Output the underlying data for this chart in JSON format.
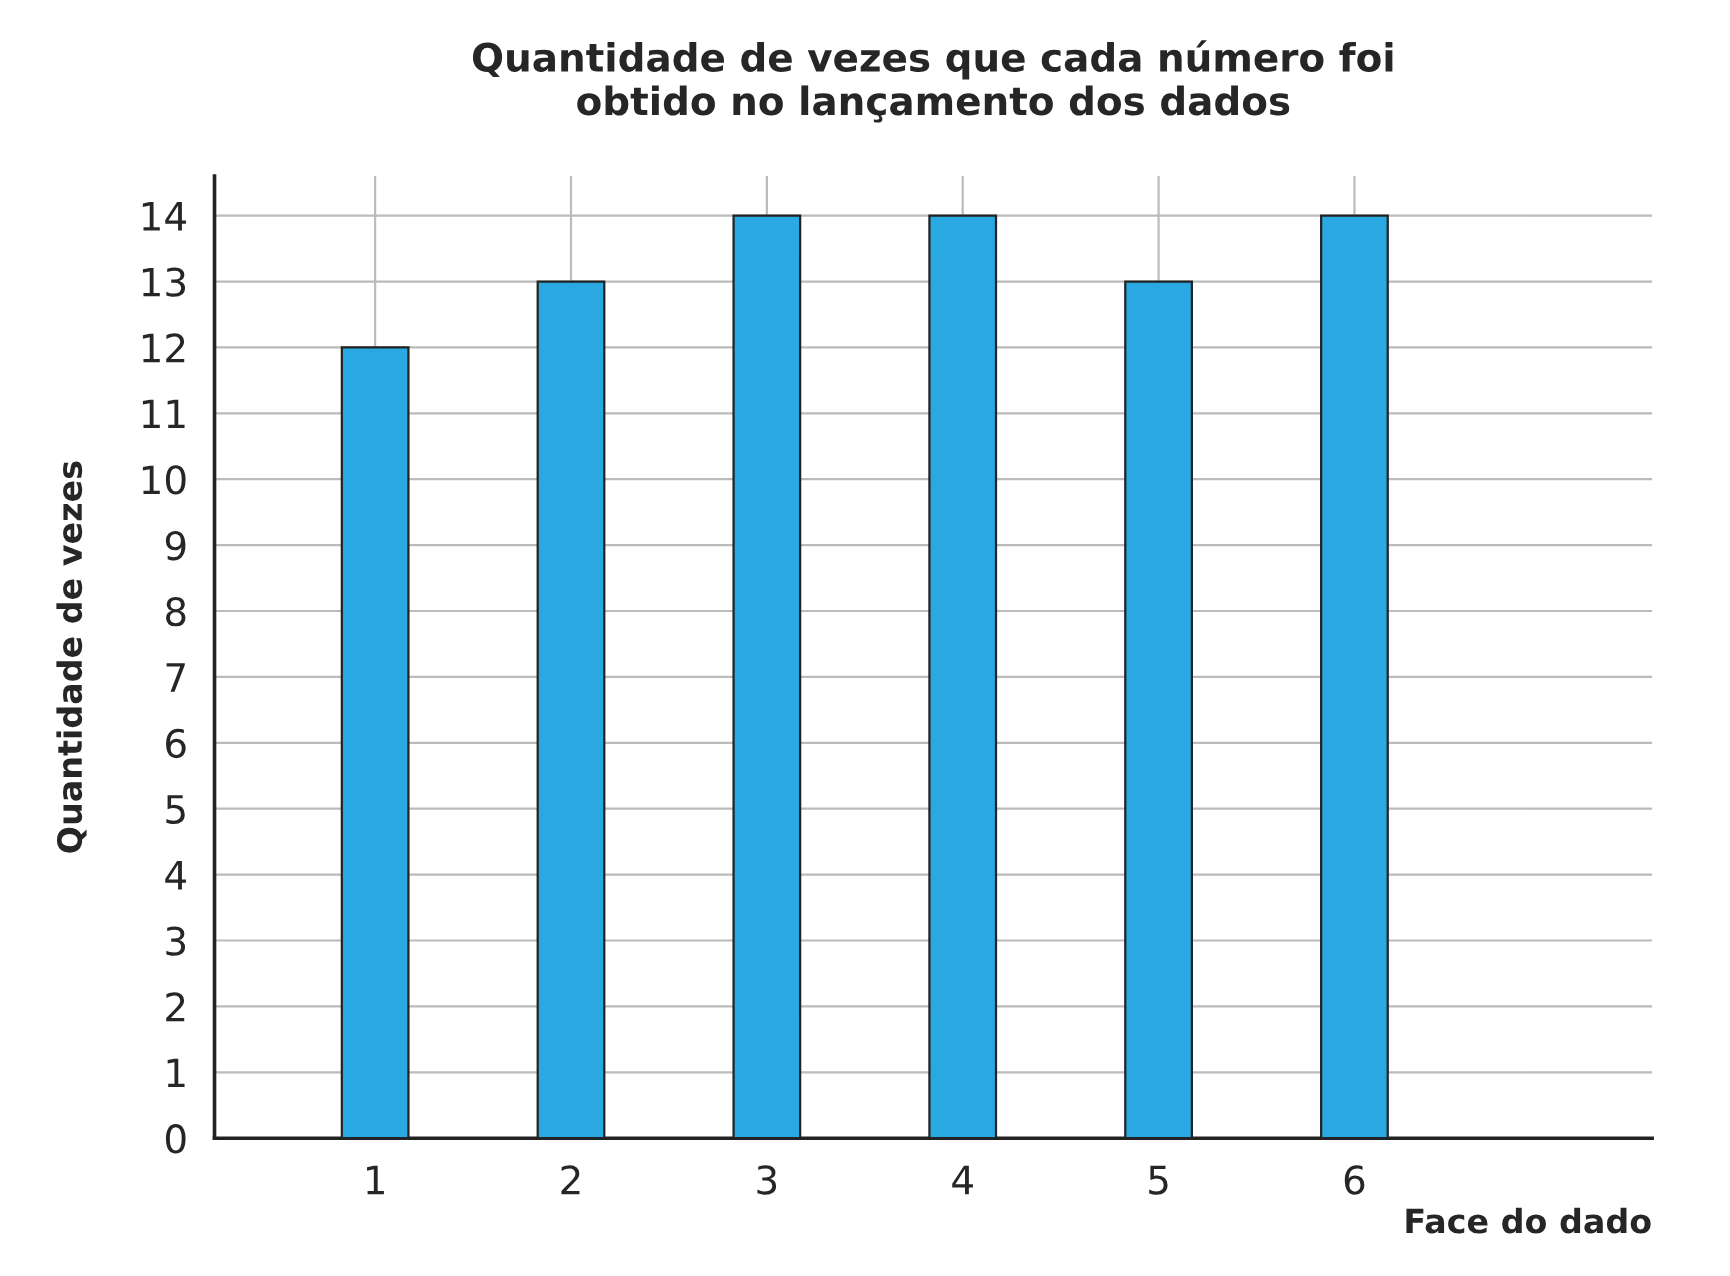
{
  "chart_data": {
    "type": "bar",
    "title": "Quantidade de vezes que cada número foi\nobtido no lançamento dos dados",
    "xlabel": "Face do dado",
    "ylabel": "Quantidade de vezes",
    "categories": [
      "1",
      "2",
      "3",
      "4",
      "5",
      "6"
    ],
    "values": [
      12,
      13,
      14,
      14,
      13,
      14
    ],
    "color": "#29a8e2",
    "ylim": [
      0,
      14.6
    ],
    "yticks": [
      0,
      1,
      2,
      3,
      4,
      5,
      6,
      7,
      8,
      9,
      10,
      11,
      12,
      13,
      14
    ],
    "grid": true
  }
}
